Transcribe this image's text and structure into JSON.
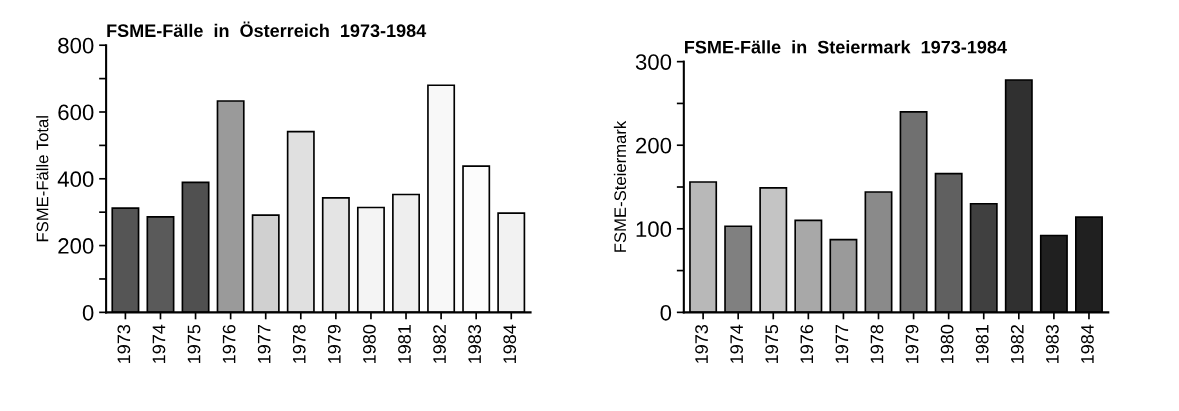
{
  "chart_data": [
    {
      "type": "bar",
      "title": "FSME-Fälle  in  Österreich  1973-1984",
      "ylabel": "FSME-Fälle Total",
      "categories": [
        "1973",
        "1974",
        "1975",
        "1976",
        "1977",
        "1978",
        "1979",
        "1980",
        "1981",
        "1982",
        "1983",
        "1984"
      ],
      "values": [
        312,
        286,
        389,
        633,
        291,
        541,
        343,
        314,
        353,
        680,
        438,
        297
      ],
      "colors": [
        "#555555",
        "#5a5a5a",
        "#505050",
        "#9a9a9a",
        "#d0d0d0",
        "#e0e0e0",
        "#e4e4e4",
        "#f4f4f4",
        "#eeeeee",
        "#f8f8f8",
        "#fcfcfc",
        "#f2f2f2"
      ],
      "ylim": [
        0,
        800
      ],
      "yticks": [
        0,
        {
          "value": 100,
          "label": null
        },
        200,
        {
          "value": 300,
          "label": null
        },
        400,
        {
          "value": 500,
          "label": null
        },
        600,
        {
          "value": 700,
          "label": null
        },
        800
      ],
      "grid": false
    },
    {
      "type": "bar",
      "title": "FSME-Fälle  in  Steiermark  1973-1984",
      "ylabel": "FSME-Steiermark",
      "categories": [
        "1973",
        "1974",
        "1975",
        "1976",
        "1977",
        "1978",
        "1979",
        "1980",
        "1981",
        "1982",
        "1983",
        "1984"
      ],
      "values": [
        156,
        103,
        149,
        110,
        87,
        144,
        240,
        166,
        130,
        278,
        92,
        114
      ],
      "colors": [
        "#b8b8b8",
        "#808080",
        "#c4c4c4",
        "#a8a8a8",
        "#9a9a9a",
        "#8a8a8a",
        "#707070",
        "#606060",
        "#404040",
        "#303030",
        "#202020",
        "#202020"
      ],
      "ylim": [
        0,
        300
      ],
      "yticks": [
        0,
        {
          "value": 50,
          "label": null
        },
        100,
        {
          "value": 150,
          "label": null
        },
        200,
        {
          "value": 250,
          "label": null
        },
        300
      ],
      "grid": false
    }
  ]
}
